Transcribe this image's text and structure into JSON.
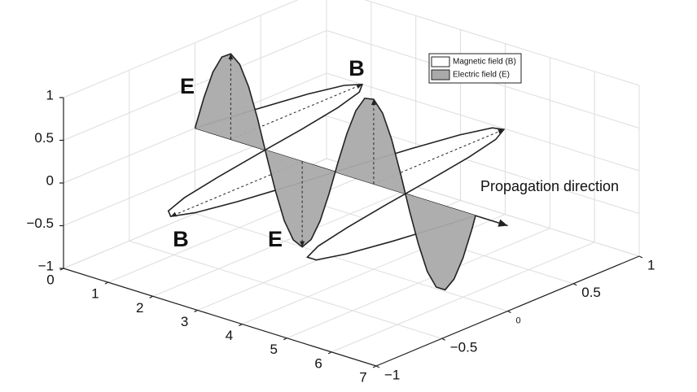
{
  "chart_data": {
    "type": "line3d",
    "x": [
      0,
      0.2,
      0.4,
      0.6,
      0.8,
      1.0,
      1.2,
      1.4,
      1.6,
      1.8,
      2.0,
      2.2,
      2.4,
      2.6,
      2.8,
      3.0,
      3.2,
      3.4,
      3.6,
      3.8,
      4.0,
      4.2,
      4.4,
      4.6,
      4.8,
      5.0,
      5.2,
      5.4,
      5.6,
      5.8,
      6.0,
      6.2,
      6.28
    ],
    "series": [
      {
        "name": "Magnetic field (B)",
        "color": "#ffffff",
        "plane": "y",
        "values": [
          0,
          0.39,
          0.72,
          0.93,
          1.0,
          0.91,
          0.68,
          0.34,
          -0.06,
          -0.44,
          -0.76,
          -0.95,
          -1.0,
          -0.88,
          -0.63,
          -0.28,
          0.12,
          0.49,
          0.79,
          0.97,
          0.99,
          0.86,
          0.59,
          0.22,
          -0.18,
          -0.54,
          -0.83,
          -0.98,
          -0.98,
          -0.82,
          -0.54,
          -0.17,
          0
        ]
      },
      {
        "name": "Electric field (E)",
        "color": "#aaaaaa",
        "plane": "z",
        "values": [
          0,
          0.39,
          0.72,
          0.93,
          1.0,
          0.91,
          0.68,
          0.34,
          -0.06,
          -0.44,
          -0.76,
          -0.95,
          -1.0,
          -0.88,
          -0.63,
          -0.28,
          0.12,
          0.49,
          0.79,
          0.97,
          0.99,
          0.86,
          0.59,
          0.22,
          -0.18,
          -0.54,
          -0.83,
          -0.98,
          -0.98,
          -0.82,
          -0.54,
          -0.17,
          0
        ]
      }
    ],
    "annotations": [
      "E",
      "B",
      "B",
      "E",
      "Propagation direction"
    ],
    "xlim": [
      0,
      7
    ],
    "xticks": [
      0,
      1,
      2,
      3,
      4,
      5,
      6,
      7
    ],
    "ylim": [
      -1,
      1
    ],
    "yticks": [
      {
        "value": -1,
        "label": "−1"
      },
      {
        "value": -0.5,
        "label": "−0.5"
      },
      0,
      0.5,
      1
    ],
    "zlim": [
      -1,
      1
    ],
    "zticks": [
      {
        "value": -1,
        "label": "−1"
      },
      {
        "value": -0.5,
        "label": "−0.5"
      },
      0,
      0.5,
      1
    ],
    "grid": true
  }
}
